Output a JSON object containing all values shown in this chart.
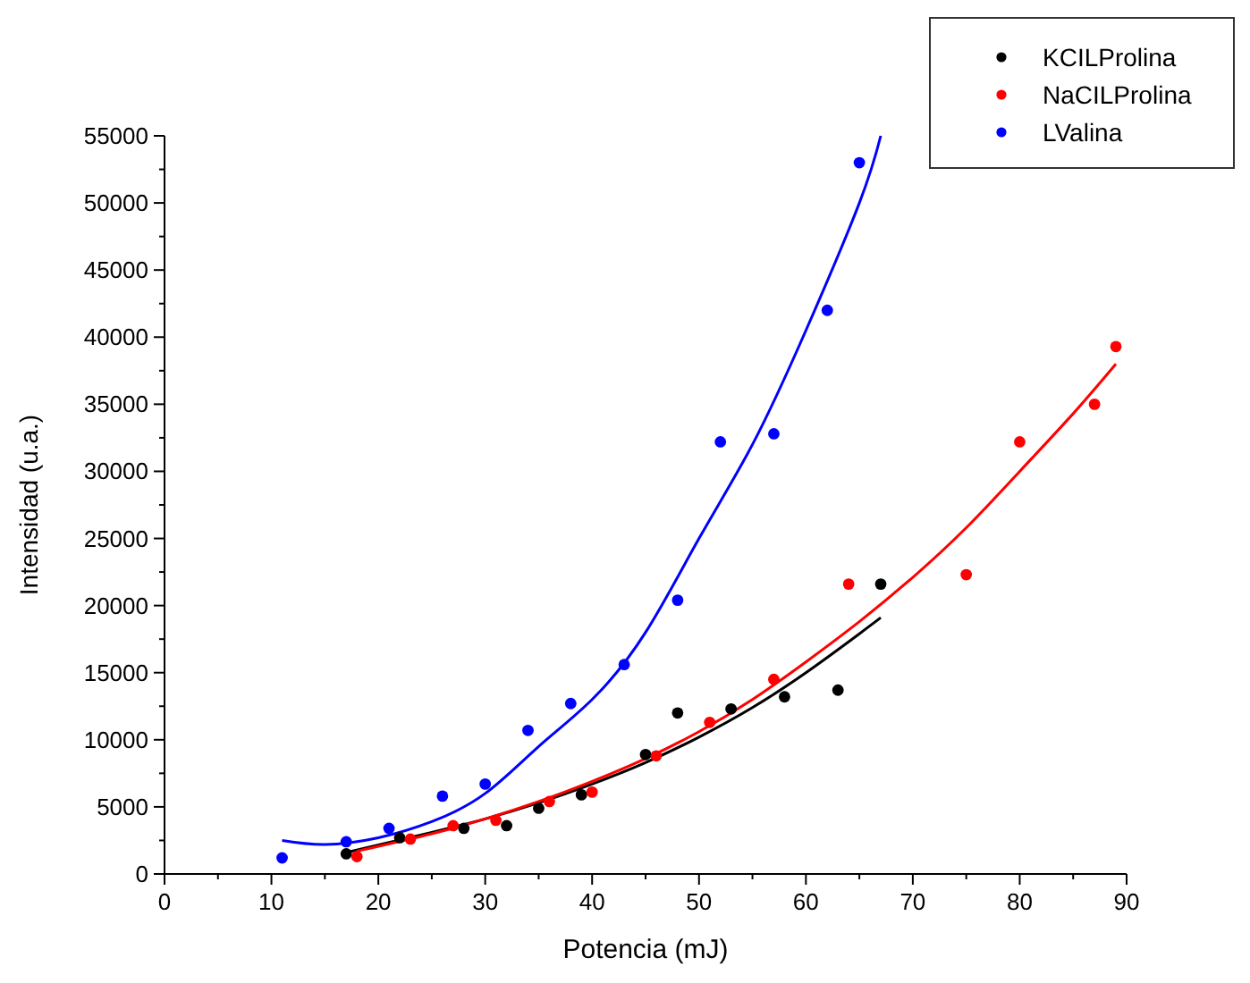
{
  "chart_data": {
    "type": "scatter",
    "xlabel": "Potencia (mJ)",
    "ylabel": "Intensidad (u.a.)",
    "xlim": [
      0,
      90
    ],
    "ylim": [
      0,
      55000
    ],
    "xticks": [
      0,
      {
        "value": 5,
        "label": null
      },
      10,
      {
        "value": 15,
        "label": null
      },
      20,
      {
        "value": 25,
        "label": null
      },
      30,
      {
        "value": 35,
        "label": null
      },
      40,
      {
        "value": 45,
        "label": null
      },
      50,
      {
        "value": 55,
        "label": null
      },
      60,
      {
        "value": 65,
        "label": null
      },
      70,
      {
        "value": 75,
        "label": null
      },
      80,
      {
        "value": 85,
        "label": null
      },
      90
    ],
    "yticks": [
      0,
      {
        "value": 2500,
        "label": null
      },
      5000,
      {
        "value": 7500,
        "label": null
      },
      10000,
      {
        "value": 12500,
        "label": null
      },
      15000,
      {
        "value": 17500,
        "label": null
      },
      20000,
      {
        "value": 22500,
        "label": null
      },
      25000,
      {
        "value": 27500,
        "label": null
      },
      30000,
      {
        "value": 32500,
        "label": null
      },
      35000,
      {
        "value": 37500,
        "label": null
      },
      40000,
      {
        "value": 42500,
        "label": null
      },
      45000,
      {
        "value": 47500,
        "label": null
      },
      50000,
      {
        "value": 52500,
        "label": null
      },
      55000
    ],
    "legend": "top right",
    "marker": "circle",
    "grid": false,
    "series": [
      {
        "name": "KCILProlina",
        "color": "#000000",
        "x": [
          17,
          22,
          28,
          32,
          35,
          39,
          45,
          48,
          53,
          58,
          63,
          67
        ],
        "values": [
          1500,
          2700,
          3400,
          3600,
          4900,
          5900,
          8900,
          12000,
          12300,
          13200,
          13700,
          21600
        ]
      },
      {
        "name": "NaCILProlina",
        "color": "#ff0000",
        "x": [
          18,
          23,
          27,
          31,
          36,
          40,
          46,
          51,
          57,
          64,
          75,
          80,
          87,
          89
        ],
        "values": [
          1300,
          2600,
          3600,
          4000,
          5400,
          6100,
          8800,
          11300,
          14500,
          21600,
          22300,
          32200,
          35000,
          39300
        ]
      },
      {
        "name": "LValina",
        "color": "#0000ff",
        "x": [
          11,
          17,
          21,
          26,
          30,
          34,
          38,
          43,
          48,
          52,
          57,
          62,
          65
        ],
        "values": [
          1200,
          2400,
          3400,
          5800,
          6700,
          10700,
          12700,
          15600,
          20400,
          32200,
          32800,
          42000,
          53000
        ]
      },
      {
        "color": "#000000",
        "type": "line",
        "marker": "none",
        "x": [
          17,
          25,
          30,
          35,
          40,
          45,
          50,
          55,
          60,
          65,
          67
        ],
        "values": [
          1600,
          3100,
          4100,
          5300,
          6700,
          8300,
          10200,
          12400,
          15000,
          17900,
          19100
        ]
      },
      {
        "color": "#ff0000",
        "type": "line",
        "marker": "none",
        "x": [
          18,
          25,
          30,
          35,
          40,
          45,
          50,
          55,
          60,
          65,
          70,
          75,
          80,
          85,
          89
        ],
        "values": [
          1700,
          3000,
          4100,
          5400,
          6900,
          8600,
          10600,
          13000,
          15800,
          18800,
          22100,
          25800,
          30000,
          34300,
          38000
        ]
      },
      {
        "color": "#0000ff",
        "type": "line",
        "marker": "none",
        "x": [
          11,
          15,
          20,
          25,
          30,
          35,
          40,
          45,
          50,
          55,
          60,
          65,
          67
        ],
        "values": [
          2500,
          2200,
          2700,
          3900,
          6000,
          9500,
          13000,
          18000,
          25000,
          32000,
          40500,
          50000,
          55000
        ]
      }
    ]
  }
}
